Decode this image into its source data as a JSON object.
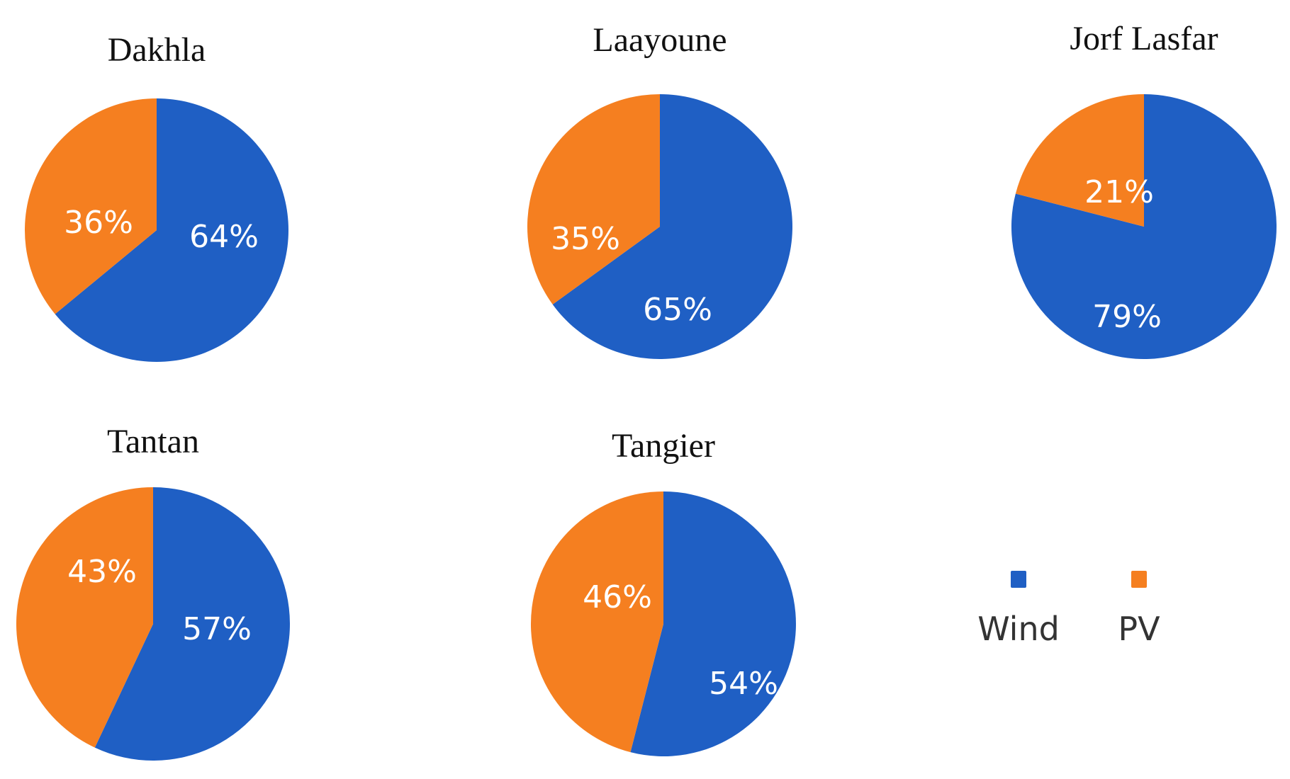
{
  "chart_data": [
    {
      "type": "pie",
      "title": "Dakhla",
      "slices": [
        {
          "label": "Wind",
          "value": 64,
          "text": "64%"
        },
        {
          "label": "PV",
          "value": 36,
          "text": "36%"
        }
      ]
    },
    {
      "type": "pie",
      "title": "Laayoune",
      "slices": [
        {
          "label": "Wind",
          "value": 65,
          "text": "65%"
        },
        {
          "label": "PV",
          "value": 35,
          "text": "35%"
        }
      ]
    },
    {
      "type": "pie",
      "title": "Jorf Lasfar",
      "slices": [
        {
          "label": "Wind",
          "value": 79,
          "text": "79%"
        },
        {
          "label": "PV",
          "value": 21,
          "text": "21%"
        }
      ]
    },
    {
      "type": "pie",
      "title": "Tantan",
      "slices": [
        {
          "label": "Wind",
          "value": 57,
          "text": "57%"
        },
        {
          "label": "PV",
          "value": 43,
          "text": "43%"
        }
      ]
    },
    {
      "type": "pie",
      "title": "Tangier",
      "slices": [
        {
          "label": "Wind",
          "value": 54,
          "text": "54%"
        },
        {
          "label": "PV",
          "value": 46,
          "text": "46%"
        }
      ]
    }
  ],
  "legend": {
    "placement": "bottom-right",
    "items": [
      {
        "label": "Wind",
        "color": "#1f5fc4"
      },
      {
        "label": "PV",
        "color": "#f57f20"
      }
    ]
  },
  "colors": {
    "Wind": "#1f5fc4",
    "PV": "#f57f20"
  }
}
